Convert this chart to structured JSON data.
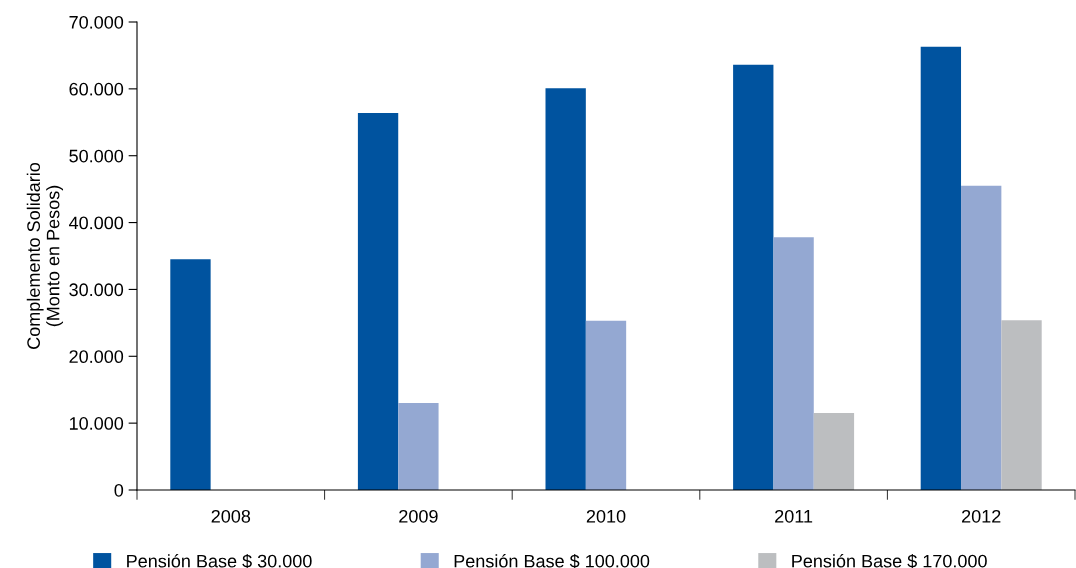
{
  "chart_data": {
    "type": "bar",
    "ylabel": "Complemento Solidario\n(Monto en Pesos)",
    "categories": [
      "2008",
      "2009",
      "2010",
      "2011",
      "2012"
    ],
    "series": [
      {
        "name": "Pensión Base $ 30.000",
        "color": "#00539f",
        "values": [
          34500,
          56400,
          60100,
          63600,
          66300
        ]
      },
      {
        "name": "Pensión Base $ 100.000",
        "color": "#94a8d2",
        "values": [
          null,
          13000,
          25300,
          37800,
          45500
        ]
      },
      {
        "name": "Pensión Base $ 170.000",
        "color": "#bcbec0",
        "values": [
          null,
          null,
          null,
          11500,
          25400
        ]
      }
    ],
    "ylim": [
      0,
      70000
    ],
    "yticks": [
      0,
      {
        "value": 10000,
        "label": "10.000"
      },
      {
        "value": 20000,
        "label": "20.000"
      },
      {
        "value": 30000,
        "label": "30.000"
      },
      {
        "value": 40000,
        "label": "40.000"
      },
      {
        "value": 50000,
        "label": "50.000"
      },
      {
        "value": 60000,
        "label": "60.000"
      },
      {
        "value": 70000,
        "label": "70.000"
      }
    ],
    "grid": false,
    "legend": "bottom"
  }
}
